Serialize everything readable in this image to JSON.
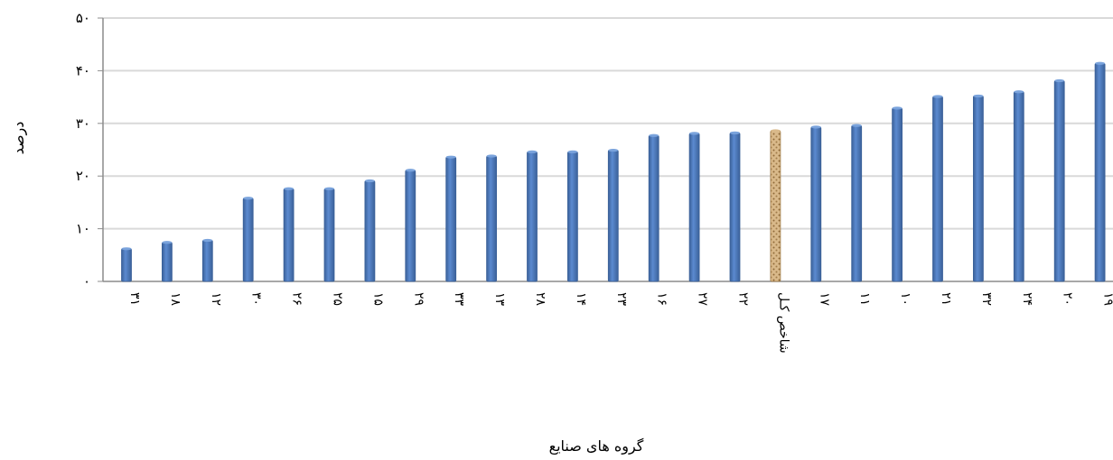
{
  "chart_data": {
    "type": "bar",
    "title": "",
    "xlabel": "گروه های صنایع",
    "ylabel": "درصد",
    "ylim": [
      0,
      50
    ],
    "y_ticks": [
      "۰",
      "۱۰",
      "۲۰",
      "۳۰",
      "۴۰",
      "۵۰"
    ],
    "y_tick_values": [
      0,
      10,
      20,
      30,
      40,
      50
    ],
    "grid": true,
    "legend": "none",
    "categories": [
      "۳۱",
      "۱۸",
      "۱۲",
      "۳۰",
      "۲۶",
      "۲۵",
      "۱۵",
      "۲۹",
      "۳۳",
      "۱۳",
      "۲۸",
      "۱۴",
      "۲۳",
      "۱۶",
      "۲۷",
      "۲۲",
      "شاخص کـل",
      "۱۷",
      "۱۱",
      "۱۰",
      "۲۱",
      "۳۲",
      "۲۴",
      "۲۰",
      "۱۹"
    ],
    "values": [
      6.2,
      7.4,
      7.8,
      15.8,
      17.6,
      17.6,
      19.1,
      21.1,
      23.6,
      23.8,
      24.6,
      24.6,
      24.9,
      27.7,
      28.1,
      28.2,
      28.6,
      29.3,
      29.6,
      32.9,
      35.1,
      35.2,
      36.0,
      38.1,
      41.4
    ],
    "highlight_category": "شاخص کـل",
    "colors": {
      "bar": "#4a78be",
      "bar_dark": "#3b6199",
      "highlight": "#d9b98a",
      "highlight_dark": "#a07c4a",
      "grid": "#d9d9d9",
      "axis": "#8c8c8c"
    }
  }
}
